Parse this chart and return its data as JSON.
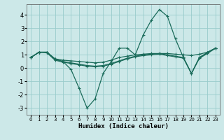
{
  "xlabel": "Humidex (Indice chaleur)",
  "bg_color": "#cce8e8",
  "grid_color": "#99cccc",
  "line_color": "#1a6b5a",
  "xlim": [
    -0.5,
    23.5
  ],
  "ylim": [
    -3.5,
    4.8
  ],
  "xticks": [
    0,
    1,
    2,
    3,
    4,
    5,
    6,
    7,
    8,
    9,
    10,
    11,
    12,
    13,
    14,
    15,
    16,
    17,
    18,
    19,
    20,
    21,
    22,
    23
  ],
  "yticks": [
    -3,
    -2,
    -1,
    0,
    1,
    2,
    3,
    4
  ],
  "series": [
    [
      0.8,
      1.2,
      1.2,
      0.7,
      0.5,
      -0.1,
      -1.5,
      -3.0,
      -2.3,
      -0.4,
      0.5,
      1.5,
      1.5,
      1.0,
      2.5,
      3.6,
      4.4,
      3.9,
      2.2,
      0.8,
      -0.4,
      0.8,
      1.2,
      1.5
    ],
    [
      0.8,
      1.2,
      1.2,
      0.7,
      0.6,
      0.55,
      0.5,
      0.45,
      0.4,
      0.45,
      0.6,
      0.8,
      0.9,
      1.0,
      1.05,
      1.1,
      1.1,
      1.1,
      1.05,
      1.0,
      0.95,
      1.05,
      1.2,
      1.5
    ],
    [
      0.8,
      1.2,
      1.2,
      0.65,
      0.5,
      0.4,
      0.3,
      0.2,
      0.15,
      0.2,
      0.35,
      0.55,
      0.75,
      0.9,
      1.0,
      1.05,
      1.1,
      1.0,
      0.9,
      0.8,
      -0.4,
      0.8,
      1.15,
      1.5
    ],
    [
      0.8,
      1.2,
      1.15,
      0.6,
      0.45,
      0.35,
      0.25,
      0.15,
      0.1,
      0.15,
      0.3,
      0.5,
      0.7,
      0.85,
      0.95,
      1.0,
      1.05,
      0.95,
      0.85,
      0.75,
      -0.4,
      0.75,
      1.1,
      1.5
    ]
  ]
}
